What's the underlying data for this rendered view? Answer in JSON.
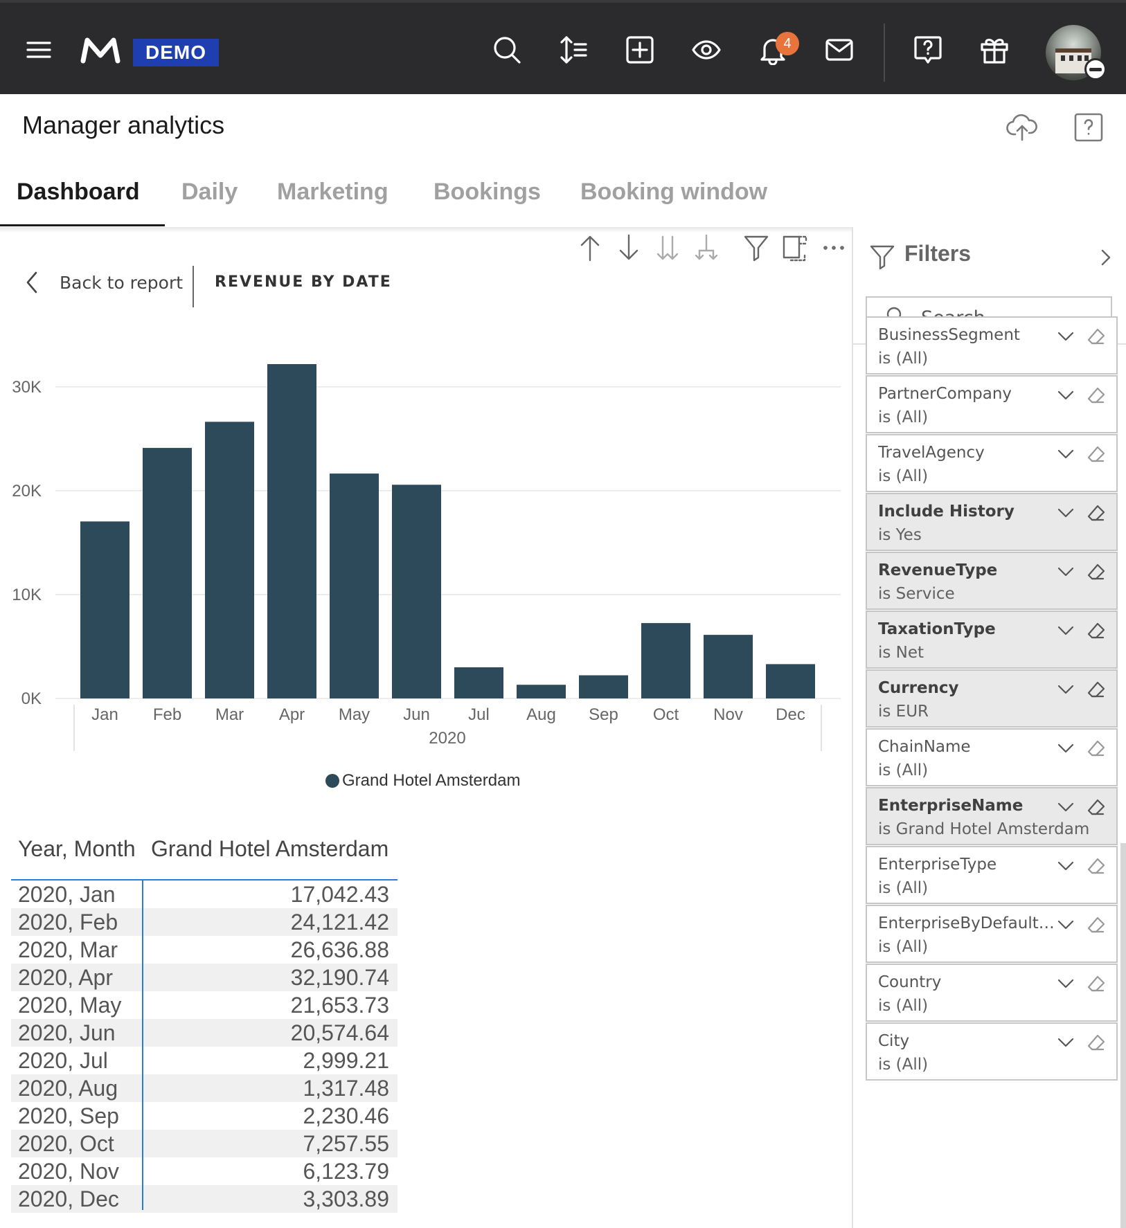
{
  "app": {
    "brand_badge": "DEMO",
    "notification_count": "4"
  },
  "page": {
    "title": "Manager analytics"
  },
  "tabs": [
    {
      "label": "Dashboard",
      "active": true
    },
    {
      "label": "Daily"
    },
    {
      "label": "Marketing"
    },
    {
      "label": "Bookings"
    },
    {
      "label": "Booking window"
    }
  ],
  "visual": {
    "back_label": "Back to report",
    "title": "REVENUE BY DATE"
  },
  "chart_data": {
    "type": "bar",
    "categories": [
      "Jan",
      "Feb",
      "Mar",
      "Apr",
      "May",
      "Jun",
      "Jul",
      "Aug",
      "Sep",
      "Oct",
      "Nov",
      "Dec"
    ],
    "x_group_label": "2020",
    "series": [
      {
        "name": "Grand Hotel Amsterdam",
        "color": "#2c4a5a",
        "values": [
          17042.43,
          24121.42,
          26636.88,
          32190.74,
          21653.73,
          20574.64,
          2999.21,
          1317.48,
          2230.46,
          7257.55,
          6123.79,
          3303.89
        ]
      }
    ],
    "y_ticks": [
      "0K",
      "10K",
      "20K",
      "30K"
    ],
    "ylim": [
      0,
      32190.74
    ],
    "grid": true,
    "legend": "bottom-center"
  },
  "table": {
    "headers": [
      "Year, Month",
      "Grand Hotel Amsterdam"
    ],
    "rows": [
      [
        "2020, Jan",
        "17,042.43"
      ],
      [
        "2020, Feb",
        "24,121.42"
      ],
      [
        "2020, Mar",
        "26,636.88"
      ],
      [
        "2020, Apr",
        "32,190.74"
      ],
      [
        "2020, May",
        "21,653.73"
      ],
      [
        "2020, Jun",
        "20,574.64"
      ],
      [
        "2020, Jul",
        "2,999.21"
      ],
      [
        "2020, Aug",
        "1,317.48"
      ],
      [
        "2020, Sep",
        "2,230.46"
      ],
      [
        "2020, Oct",
        "7,257.55"
      ],
      [
        "2020, Nov",
        "6,123.79"
      ],
      [
        "2020, Dec",
        "3,303.89"
      ]
    ]
  },
  "filters": {
    "title": "Filters",
    "search_placeholder": "Search",
    "items": [
      {
        "name": "BusinessSegment",
        "value": "is (All)",
        "active": false
      },
      {
        "name": "PartnerCompany",
        "value": "is (All)",
        "active": false
      },
      {
        "name": "TravelAgency",
        "value": "is (All)",
        "active": false
      },
      {
        "name": "Include History",
        "value": "is Yes",
        "active": true
      },
      {
        "name": "RevenueType",
        "value": "is Service",
        "active": true
      },
      {
        "name": "TaxationType",
        "value": "is Net",
        "active": true
      },
      {
        "name": "Currency",
        "value": "is EUR",
        "active": true
      },
      {
        "name": "ChainName",
        "value": "is (All)",
        "active": false
      },
      {
        "name": "EnterpriseName",
        "value": "is Grand Hotel Amsterdam",
        "active": true
      },
      {
        "name": "EnterpriseType",
        "value": "is (All)",
        "active": false
      },
      {
        "name": "EnterpriseByDefaultCu...",
        "value": "is (All)",
        "active": false
      },
      {
        "name": "Country",
        "value": "is (All)",
        "active": false
      },
      {
        "name": "City",
        "value": "is (All)",
        "active": false
      }
    ]
  }
}
